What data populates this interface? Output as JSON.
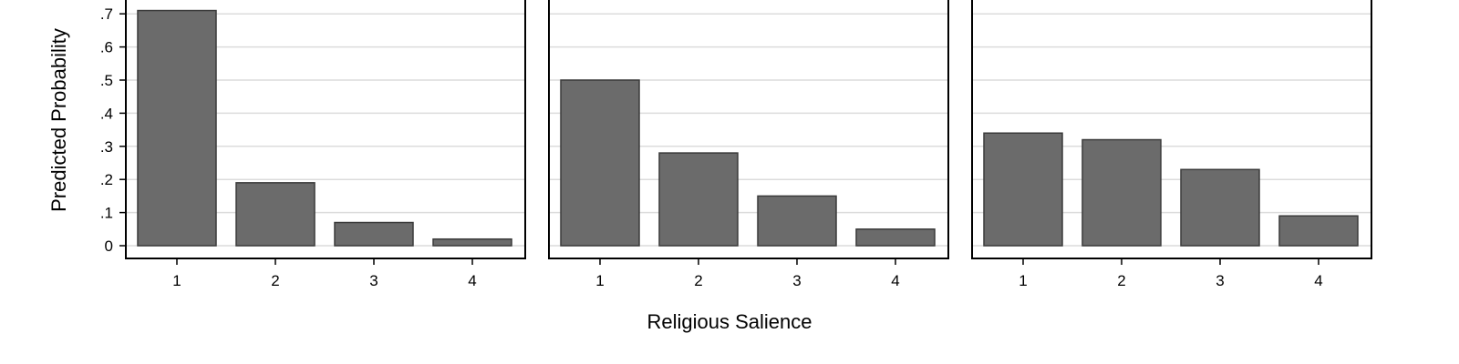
{
  "chart_data": [
    {
      "type": "bar",
      "categories": [
        "1",
        "2",
        "3",
        "4"
      ],
      "values": [
        0.71,
        0.19,
        0.07,
        0.02
      ],
      "ylabel": "Predicted Probability",
      "yticks": [
        "0",
        ".1",
        ".2",
        ".3",
        ".4",
        ".5",
        ".6",
        ".7"
      ],
      "ylim": [
        0,
        0.75
      ],
      "grid": true,
      "bar_color": "#6b6b6b"
    },
    {
      "type": "bar",
      "categories": [
        "1",
        "2",
        "3",
        "4"
      ],
      "values": [
        0.5,
        0.28,
        0.15,
        0.05
      ],
      "ylim": [
        0,
        0.75
      ],
      "grid": true,
      "bar_color": "#6b6b6b"
    },
    {
      "type": "bar",
      "categories": [
        "1",
        "2",
        "3",
        "4"
      ],
      "values": [
        0.34,
        0.32,
        0.23,
        0.09
      ],
      "ylim": [
        0,
        0.75
      ],
      "grid": true,
      "bar_color": "#6b6b6b"
    }
  ],
  "xlabel": "Religious Salience"
}
